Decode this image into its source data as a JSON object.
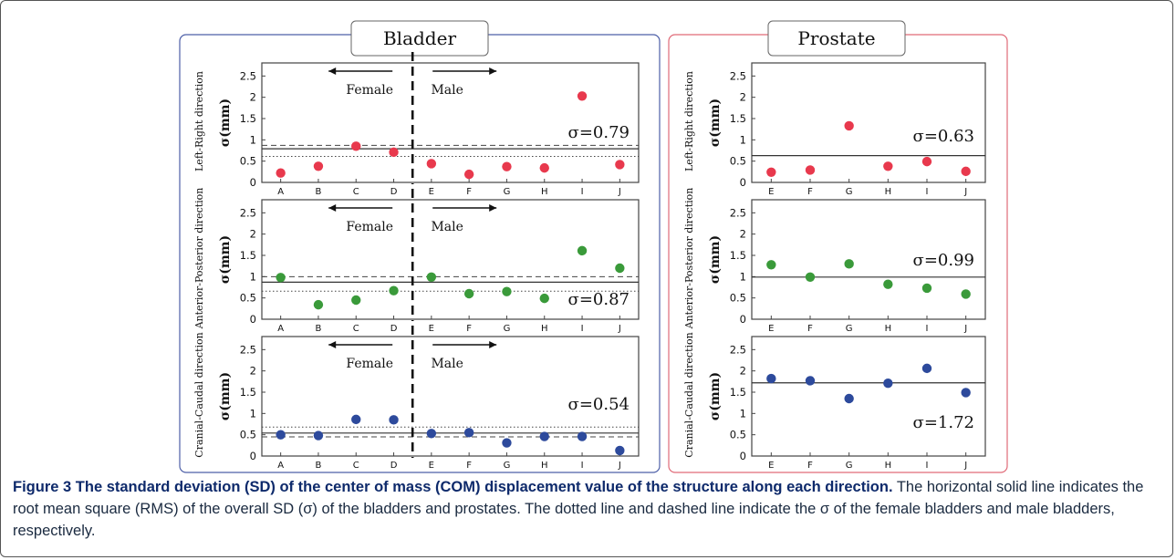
{
  "figure": {
    "label": "Figure 3",
    "title": "The standard deviation (SD) of the center of mass (COM) displacement value of the structure along each direction.",
    "caption": "The horizontal solid line indicates the root mean square (RMS) of the overall SD (σ) of the bladders and prostates. The dotted line and dashed line indicate the σ of the female bladders and male bladders, respectively."
  },
  "panels": [
    {
      "title": "Bladder",
      "border_color": "#4d5fa8"
    },
    {
      "title": "Prostate",
      "border_color": "#e06a78"
    }
  ],
  "axis": {
    "ylabel": "σ(mm)",
    "yticks": [
      "0",
      "0.5",
      "1",
      "1.5",
      "2",
      "2.5"
    ]
  },
  "group_labels": {
    "female": "Female",
    "male": "Male"
  },
  "colors": {
    "lr": "#e8394d",
    "ap": "#3a9a3a",
    "cc": "#2d4a9c"
  },
  "chart_data": [
    {
      "type": "scatter",
      "panel": "Bladder",
      "row": "Left-Right direction",
      "ylabel": "σ(mm)",
      "ylim": [
        0,
        2.7
      ],
      "categories": [
        "A",
        "B",
        "C",
        "D",
        "E",
        "F",
        "G",
        "H",
        "I",
        "J"
      ],
      "values": [
        0.22,
        0.38,
        0.85,
        0.71,
        0.44,
        0.19,
        0.37,
        0.34,
        2.03,
        0.42
      ],
      "sigma_label": "σ=0.79",
      "rms": 0.79,
      "female_sigma": 0.61,
      "male_sigma": 0.87
    },
    {
      "type": "scatter",
      "panel": "Bladder",
      "row": "Anterior-Posterior direction",
      "ylabel": "σ(mm)",
      "ylim": [
        0,
        2.7
      ],
      "categories": [
        "A",
        "B",
        "C",
        "D",
        "E",
        "F",
        "G",
        "H",
        "I",
        "J"
      ],
      "values": [
        0.98,
        0.34,
        0.45,
        0.67,
        0.99,
        0.6,
        0.65,
        0.49,
        1.61,
        1.2
      ],
      "sigma_label": "σ=0.87",
      "rms": 0.87,
      "female_sigma": 0.66,
      "male_sigma": 1.0
    },
    {
      "type": "scatter",
      "panel": "Bladder",
      "row": "Cranial-Caudal direction",
      "ylabel": "σ(mm)",
      "ylim": [
        0,
        2.7
      ],
      "categories": [
        "A",
        "B",
        "C",
        "D",
        "E",
        "F",
        "G",
        "H",
        "I",
        "J"
      ],
      "values": [
        0.5,
        0.48,
        0.86,
        0.85,
        0.53,
        0.55,
        0.31,
        0.46,
        0.46,
        0.13
      ],
      "sigma_label": "σ=0.54",
      "rms": 0.54,
      "female_sigma": 0.68,
      "male_sigma": 0.45
    },
    {
      "type": "scatter",
      "panel": "Prostate",
      "row": "Left-Right direction",
      "ylabel": "σ(mm)",
      "ylim": [
        0,
        2.7
      ],
      "categories": [
        "E",
        "F",
        "G",
        "H",
        "I",
        "J"
      ],
      "values": [
        0.24,
        0.29,
        1.33,
        0.38,
        0.49,
        0.26
      ],
      "sigma_label": "σ=0.63",
      "rms": 0.63
    },
    {
      "type": "scatter",
      "panel": "Prostate",
      "row": "Anterior-Posterior direction",
      "ylabel": "σ(mm)",
      "ylim": [
        0,
        2.7
      ],
      "categories": [
        "E",
        "F",
        "G",
        "H",
        "I",
        "J"
      ],
      "values": [
        1.28,
        0.99,
        1.3,
        0.82,
        0.73,
        0.59
      ],
      "sigma_label": "σ=0.99",
      "rms": 0.99
    },
    {
      "type": "scatter",
      "panel": "Prostate",
      "row": "Cranial-Caudal direction",
      "ylabel": "σ(mm)",
      "ylim": [
        0,
        2.7
      ],
      "categories": [
        "E",
        "F",
        "G",
        "H",
        "I",
        "J"
      ],
      "values": [
        1.82,
        1.77,
        1.35,
        1.71,
        2.06,
        1.49
      ],
      "sigma_label": "σ=1.72",
      "rms": 1.72
    }
  ]
}
